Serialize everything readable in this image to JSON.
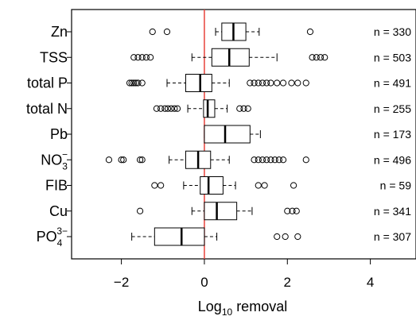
{
  "chart_data": {
    "type": "boxplot",
    "title": "",
    "xlabel_prefix": "Log",
    "xlabel_sub": "10",
    "xlabel_suffix": " removal",
    "xlim": [
      -3.2,
      5.1
    ],
    "xticks": [
      "−2",
      "0",
      "2",
      "4"
    ],
    "xtick_values": [
      -2,
      0,
      2,
      4
    ],
    "reference_line": {
      "x": 0,
      "color": "#e8413a"
    },
    "box_color": "#000000",
    "grid": false,
    "legend": "none",
    "series": [
      {
        "name": "Zn",
        "n_label": "n = 330",
        "whisker_low": 0.27,
        "q1": 0.42,
        "median": 0.7,
        "q3": 1.0,
        "whisker_high": 1.32,
        "outliers": [
          -1.25,
          -0.9,
          2.55
        ]
      },
      {
        "name": "TSS",
        "n_label": "n = 503",
        "whisker_low": -0.3,
        "q1": 0.18,
        "median": 0.6,
        "q3": 1.08,
        "whisker_high": 1.75,
        "outliers": [
          -1.7,
          -1.6,
          -1.5,
          -1.4,
          -1.3,
          2.6,
          2.7,
          2.8,
          2.9
        ]
      },
      {
        "name": "total P",
        "n_label": "n = 491",
        "whisker_low": -0.9,
        "q1": -0.45,
        "median": -0.1,
        "q3": 0.18,
        "whisker_high": 0.6,
        "outliers": [
          -1.8,
          -1.75,
          -1.7,
          -1.65,
          -1.6,
          -1.5,
          1.1,
          1.2,
          1.3,
          1.4,
          1.5,
          1.6,
          1.75,
          1.9,
          2.1,
          2.25,
          2.45
        ]
      },
      {
        "name": "total N",
        "n_label": "n = 255",
        "whisker_low": -0.4,
        "q1": -0.02,
        "median": 0.08,
        "q3": 0.25,
        "whisker_high": 0.55,
        "outliers": [
          -1.15,
          -1.05,
          -0.95,
          -0.88,
          -0.8,
          -0.72,
          -0.65,
          0.85,
          0.95,
          1.05
        ]
      },
      {
        "name": "Pb",
        "n_label": "n = 173",
        "whisker_low": 0.0,
        "q1": 0.0,
        "median": 0.5,
        "q3": 1.1,
        "whisker_high": 1.35,
        "outliers": []
      },
      {
        "name": "NO",
        "name_sub": "3",
        "name_sup": "−",
        "n_label": "n = 496",
        "whisker_low": -0.85,
        "q1": -0.45,
        "median": -0.15,
        "q3": 0.15,
        "whisker_high": 0.6,
        "outliers": [
          -2.3,
          -2.0,
          -1.95,
          -1.55,
          -1.5,
          1.2,
          1.3,
          1.4,
          1.5,
          1.6,
          1.7,
          1.8,
          1.9,
          2.45
        ]
      },
      {
        "name": "FIB",
        "n_label": "n = 59",
        "whisker_low": -0.5,
        "q1": -0.1,
        "median": 0.1,
        "q3": 0.45,
        "whisker_high": 0.75,
        "outliers": [
          -1.2,
          -1.05,
          1.3,
          1.45,
          2.15
        ]
      },
      {
        "name": "Cu",
        "n_label": "n = 341",
        "whisker_low": -0.3,
        "q1": 0.0,
        "median": 0.3,
        "q3": 0.78,
        "whisker_high": 1.15,
        "outliers": [
          -1.55,
          2.0,
          2.12,
          2.22
        ]
      },
      {
        "name": "PO",
        "name_sub": "4",
        "name_sup": "3−",
        "n_label": "n = 307",
        "whisker_low": -1.75,
        "q1": -1.2,
        "median": -0.55,
        "q3": 0.0,
        "whisker_high": 0.3,
        "outliers": [
          1.75,
          1.95,
          2.25
        ]
      }
    ]
  }
}
